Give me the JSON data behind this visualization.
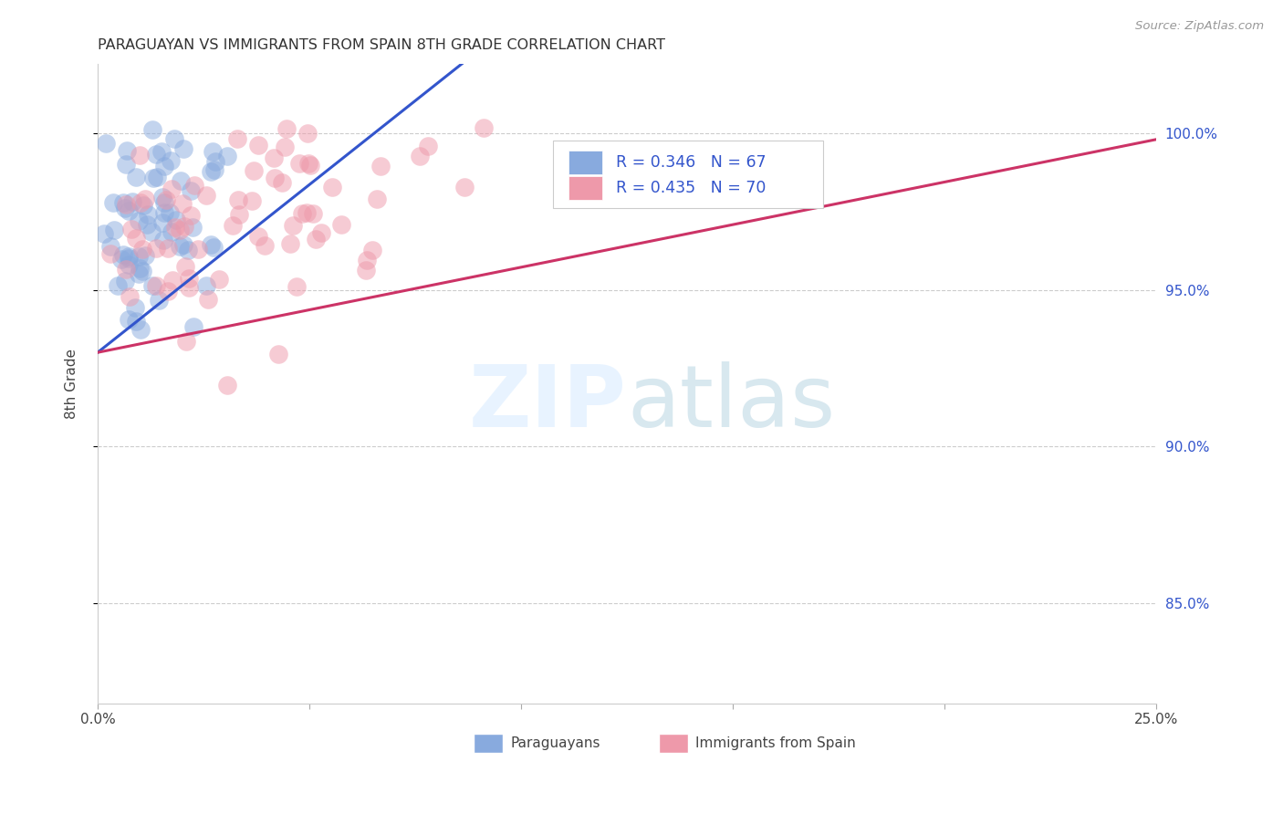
{
  "title": "PARAGUAYAN VS IMMIGRANTS FROM SPAIN 8TH GRADE CORRELATION CHART",
  "source": "Source: ZipAtlas.com",
  "ylabel": "8th Grade",
  "ylabel_right_ticks": [
    "100.0%",
    "95.0%",
    "90.0%",
    "85.0%"
  ],
  "ylabel_right_values": [
    1.0,
    0.95,
    0.9,
    0.85
  ],
  "xmin": 0.0,
  "xmax": 0.25,
  "ymin": 0.818,
  "ymax": 1.022,
  "r_blue": 0.346,
  "n_blue": 67,
  "r_pink": 0.435,
  "n_pink": 70,
  "legend_label_blue": "Paraguayans",
  "legend_label_pink": "Immigrants from Spain",
  "dot_color_blue": "#88AADE",
  "dot_color_pink": "#EE99AA",
  "line_color_blue": "#3355CC",
  "line_color_pink": "#CC3366",
  "text_color_blue": "#3355CC",
  "grid_color": "#CCCCCC",
  "axis_color": "#AAAAAA"
}
